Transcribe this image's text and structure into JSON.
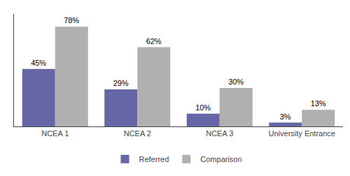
{
  "chart_data": {
    "type": "bar",
    "categories": [
      "NCEA 1",
      "NCEA 2",
      "NCEA 3",
      "University Entrance"
    ],
    "series": [
      {
        "name": "Referred",
        "color": "#6466a6",
        "values": [
          45,
          29,
          10,
          3
        ],
        "value_labels": [
          "45%",
          "29%",
          "10%",
          "3%"
        ]
      },
      {
        "name": "Comparison",
        "color": "#b0b0b0",
        "values": [
          78,
          62,
          30,
          13
        ],
        "value_labels": [
          "78%",
          "62%",
          "30%",
          "13%"
        ]
      }
    ],
    "ylim": [
      0,
      88
    ],
    "yticks": [],
    "grid": false,
    "legend": "bottom",
    "data_labels": true,
    "tick_labels": "x"
  }
}
